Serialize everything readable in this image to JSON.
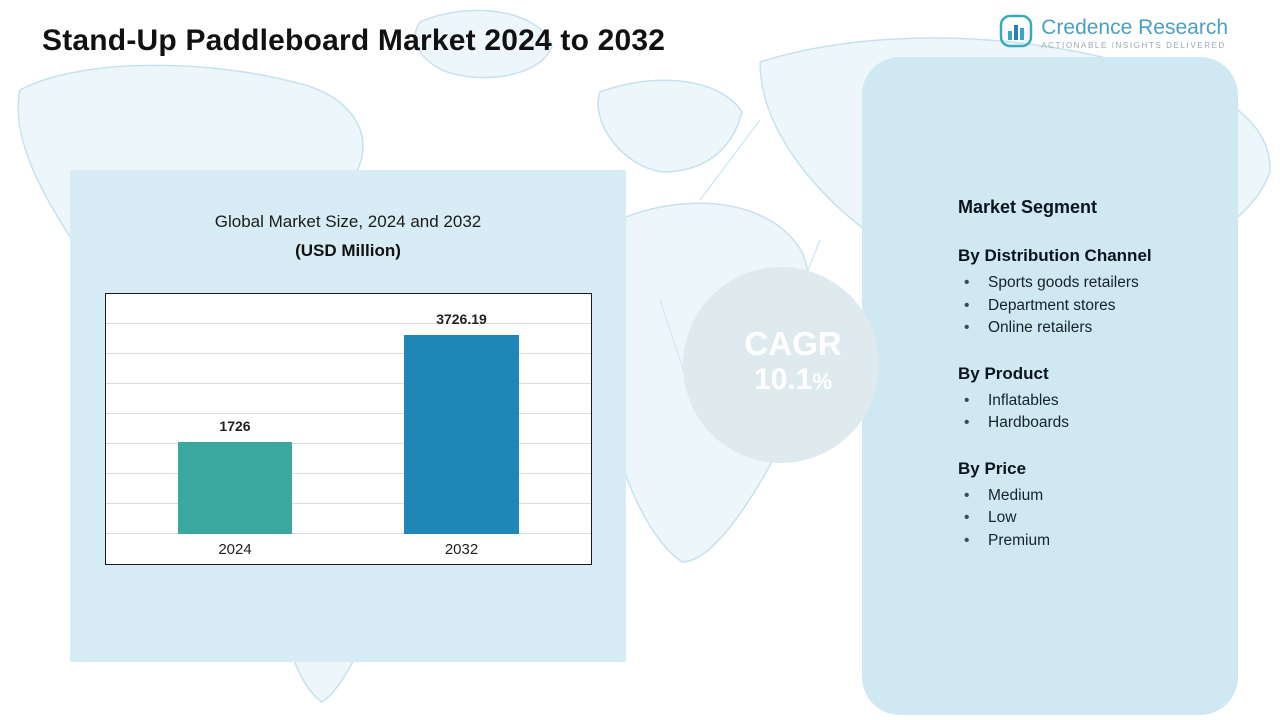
{
  "title": "Stand-Up Paddleboard Market  2024 to 2032",
  "logo": {
    "name": "Credence Research",
    "tagline": "Actionable Insights Delivered"
  },
  "chart_data": {
    "type": "bar",
    "title": "Global Market Size, 2024 and 2032",
    "subtitle": "(USD Million)",
    "categories": [
      "2024",
      "2032"
    ],
    "values": [
      1726,
      3726.19
    ],
    "value_labels": [
      "1726",
      "3726.19"
    ],
    "bar_colors": [
      "#3BA89F",
      "#1F87B8"
    ],
    "ylim": [
      0,
      4500
    ],
    "grid": "horizontal",
    "legend": "none"
  },
  "cagr": {
    "label": "CAGR",
    "value": "10.1",
    "percent_sign": "%"
  },
  "segments": {
    "title": "Market Segment",
    "groups": [
      {
        "heading": "By Distribution Channel",
        "items": [
          "Sports goods retailers",
          "Department stores",
          "Online retailers"
        ]
      },
      {
        "heading": "By Product",
        "items": [
          "Inflatables",
          "Hardboards"
        ]
      },
      {
        "heading": "By Price",
        "items": [
          "Medium",
          "Low",
          "Premium"
        ]
      }
    ]
  },
  "colors": {
    "bar_teal": "#3BA89F",
    "bar_blue": "#1F87B8",
    "cagr_circle": "#1C4653",
    "panel_left": "#D7ECF4",
    "panel_right": "#CFE8F2",
    "logo_blue": "#4AA0C4",
    "map_outline": "#C6E2EE"
  },
  "bullet_glyph": "•"
}
